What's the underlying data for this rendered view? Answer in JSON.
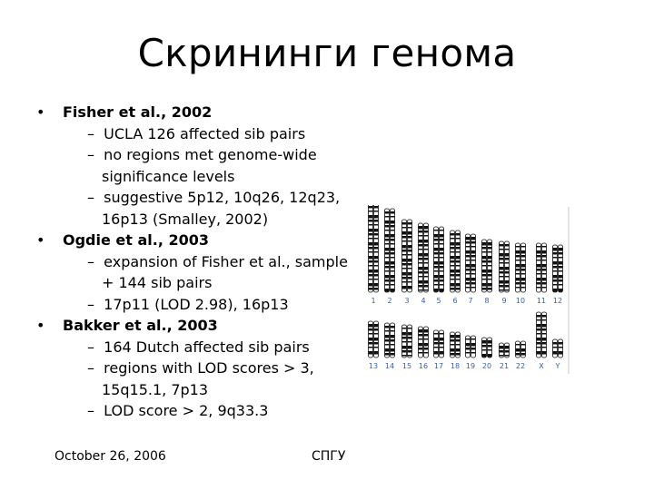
{
  "slide": {
    "title": "Скрининги генома",
    "bullets": [
      {
        "text": "Fisher et al., 2002",
        "subs": [
          "UCLA 126 affected sib pairs",
          "no regions met genome-wide significance levels",
          "suggestive 5p12, 10q26, 12q23, 16p13 (Smalley, 2002)"
        ]
      },
      {
        "text": "Ogdie et al., 2003",
        "subs": [
          "expansion of Fisher et al., sample + 144 sib pairs",
          "17p11 (LOD 2.98), 16p13"
        ]
      },
      {
        "text": "Bakker et al., 2003",
        "subs": [
          "164 Dutch affected sib pairs",
          "regions with LOD scores > 3, 15q15.1, 7p13",
          "LOD score > 2, 9q33.3"
        ]
      }
    ],
    "bullet_glyph": "•",
    "dash_glyph": "–",
    "footer": {
      "date": "October 26, 2006",
      "org": "СПГУ"
    }
  },
  "karyogram": {
    "row1_labels": [
      "1",
      "2",
      "3",
      "4",
      "5",
      "6",
      "7",
      "8",
      "9",
      "10",
      "11",
      "12"
    ],
    "row2_labels": [
      "13",
      "14",
      "15",
      "16",
      "17",
      "18",
      "19",
      "20",
      "21",
      "22",
      "X",
      "Y"
    ],
    "label_color": "#3a5fa8"
  }
}
